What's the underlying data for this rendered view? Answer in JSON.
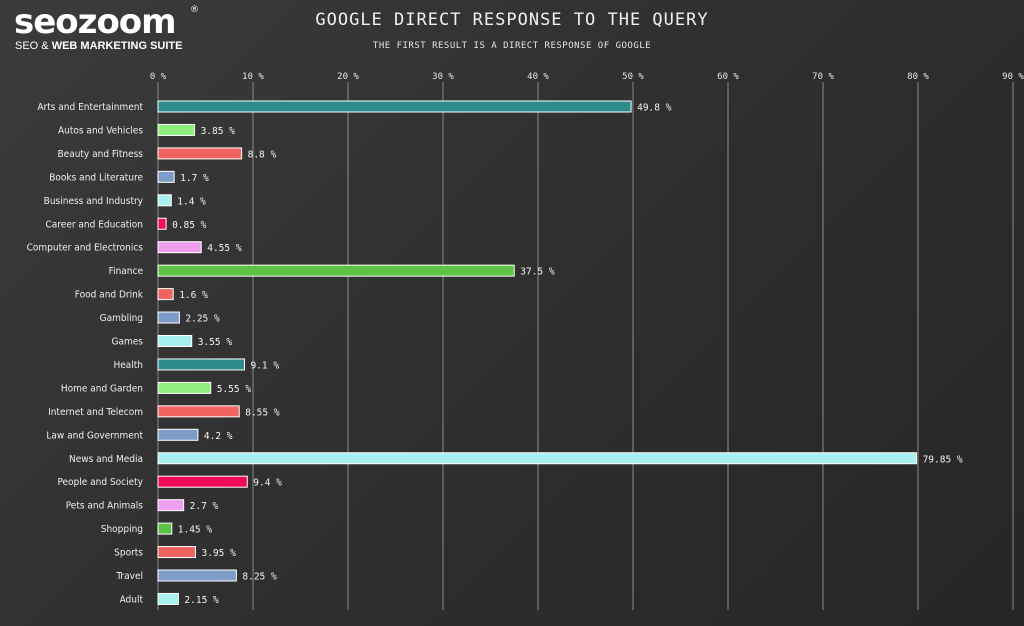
{
  "brand": {
    "name": "seozoom",
    "registered": "®",
    "tagline_plain": "SEO & ",
    "tagline_bold": "WEB MARKETING SUITE"
  },
  "chart_data": {
    "type": "bar",
    "orientation": "horizontal",
    "title": "GOOGLE DIRECT RESPONSE TO THE QUERY",
    "subtitle": "THE FIRST RESULT IS A DIRECT RESPONSE OF GOOGLE",
    "xlim": [
      0,
      90
    ],
    "ticks": [
      0,
      10,
      20,
      30,
      40,
      50,
      60,
      70,
      80,
      90
    ],
    "tick_labels": [
      "0 %",
      "10 %",
      "20 %",
      "30 %",
      "40 %",
      "50 %",
      "60 %",
      "70 %",
      "80 %",
      "90 %"
    ],
    "grid": true,
    "categories": [
      "Arts and Entertainment",
      "Autos and Vehicles",
      "Beauty and Fitness",
      "Books and Literature",
      "Business and Industry",
      "Career and Education",
      "Computer and Electronics",
      "Finance",
      "Food and Drink",
      "Gambling",
      "Games",
      "Health",
      "Home and Garden",
      "Internet and Telecom",
      "Law and Government",
      "News and Media",
      "People and Society",
      "Pets and Animals",
      "Shopping",
      "Sports",
      "Travel",
      "Adult"
    ],
    "values": [
      49.8,
      3.85,
      8.8,
      1.7,
      1.4,
      0.85,
      4.55,
      37.5,
      1.6,
      2.25,
      3.55,
      9.1,
      5.55,
      8.55,
      4.2,
      79.85,
      9.4,
      2.7,
      1.45,
      3.95,
      8.25,
      2.15
    ],
    "value_labels": [
      "49.8 %",
      "3.85 %",
      "8.8 %",
      "1.7 %",
      "1.4 %",
      "0.85 %",
      "4.55 %",
      "37.5 %",
      "1.6 %",
      "2.25 %",
      "3.55 %",
      "9.1 %",
      "5.55 %",
      "8.55 %",
      "4.2 %",
      "79.85 %",
      "9.4 %",
      "2.7 %",
      "1.45 %",
      "3.95 %",
      "8.25 %",
      "2.15 %"
    ],
    "colors": [
      "#2e8b8b",
      "#90ee7e",
      "#f0635e",
      "#7d9cc8",
      "#a8f0f0",
      "#f50a5a",
      "#ef9ff0",
      "#5dc246",
      "#f0635e",
      "#7d9cc8",
      "#a8f0f0",
      "#2e8b8b",
      "#90ee7e",
      "#f0635e",
      "#7d9cc8",
      "#a8f0f0",
      "#f50a5a",
      "#ef9ff0",
      "#5dc246",
      "#f0635e",
      "#7d9cc8",
      "#a8f0f0"
    ]
  }
}
